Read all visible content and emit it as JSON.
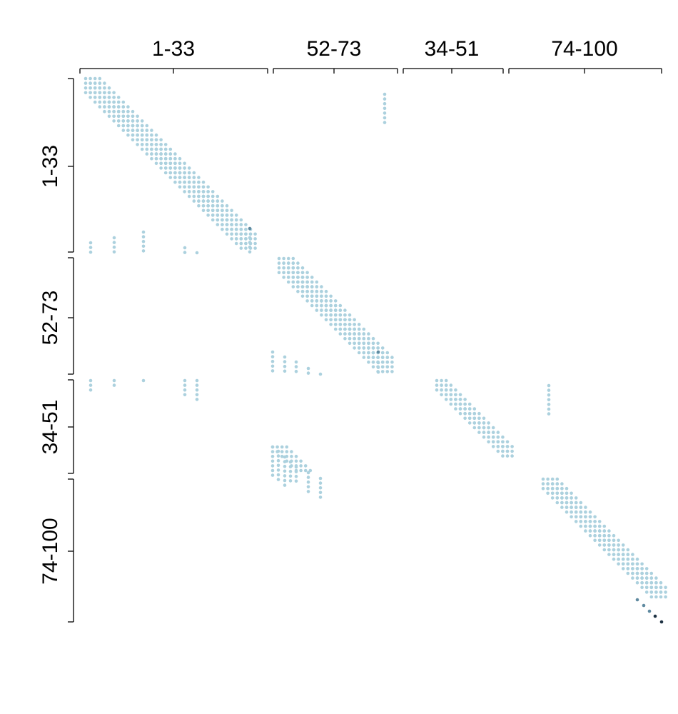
{
  "chart_data": {
    "type": "scatter",
    "title": "",
    "xlabel": "",
    "ylabel": "",
    "n": 100,
    "xlim": [
      1,
      100
    ],
    "ylim": [
      1,
      100
    ],
    "grid": false,
    "groups": [
      {
        "label": "1-33",
        "members": [
          1,
          33
        ]
      },
      {
        "label": "52-73",
        "members": [
          52,
          73
        ]
      },
      {
        "label": "34-51",
        "members": [
          34,
          51
        ]
      },
      {
        "label": "74-100",
        "members": [
          74,
          100
        ]
      }
    ],
    "point_colors": {
      "light": "#acd1de",
      "medium": "#5f8aa0",
      "dark": "#1d3142"
    },
    "band_description": "points lie near the diagonal within each group (banded block pattern)",
    "blocks": [
      {
        "row_group": "1-33",
        "col_group": "1-33",
        "pattern": "diagonal-band",
        "bandwidth": 4
      },
      {
        "row_group": "52-73",
        "col_group": "52-73",
        "pattern": "diagonal-band",
        "bandwidth": 4
      },
      {
        "row_group": "34-51",
        "col_group": "34-51",
        "pattern": "diagonal-band",
        "bandwidth": 3
      },
      {
        "row_group": "74-100",
        "col_group": "74-100",
        "pattern": "diagonal-band",
        "bandwidth": 4
      },
      {
        "row_group": "52-73",
        "col_group": "1-33",
        "pattern": "sparse"
      },
      {
        "row_group": "34-51",
        "col_group": "1-33",
        "pattern": "sparse"
      },
      {
        "row_group": "34-51",
        "col_group": "52-73",
        "pattern": "sparse"
      },
      {
        "row_group": "74-100",
        "col_group": "52-73",
        "pattern": "sparse"
      },
      {
        "row_group": "1-33",
        "col_group": "52-73",
        "pattern": "sparse"
      },
      {
        "row_group": "34-51",
        "col_group": "74-100",
        "pattern": "sparse"
      }
    ]
  }
}
